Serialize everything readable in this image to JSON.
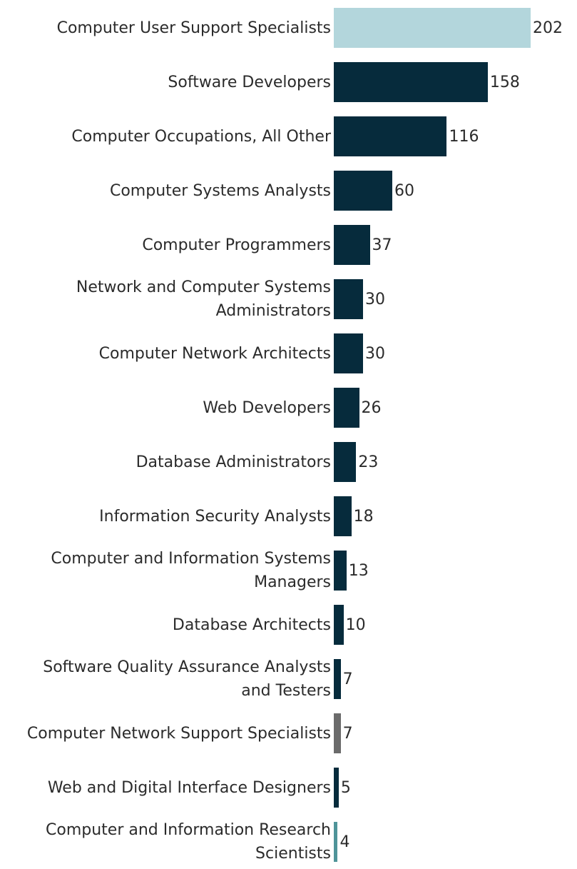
{
  "chart_data": {
    "type": "bar",
    "orientation": "horizontal",
    "title": "",
    "xlabel": "",
    "ylabel": "",
    "xlim": [
      0,
      202
    ],
    "grid": false,
    "legend": "none",
    "categories": [
      "Computer User Support Specialists",
      "Software Developers",
      "Computer Occupations, All Other",
      "Computer Systems Analysts",
      "Computer Programmers",
      "Network and Computer Systems Administrators",
      "Computer Network Architects",
      "Web Developers",
      "Database Administrators",
      "Information Security Analysts",
      "Computer and Information Systems Managers",
      "Database Architects",
      "Software Quality Assurance Analysts and Testers",
      "Computer Network Support Specialists",
      "Web and Digital Interface Designers",
      "Computer and Information Research Scientists"
    ],
    "label_lines": [
      [
        "Computer User Support Specialists"
      ],
      [
        "Software Developers"
      ],
      [
        "Computer Occupations, All Other"
      ],
      [
        "Computer Systems Analysts"
      ],
      [
        "Computer Programmers"
      ],
      [
        "Network and Computer Systems",
        "Administrators"
      ],
      [
        "Computer Network Architects"
      ],
      [
        "Web Developers"
      ],
      [
        "Database Administrators"
      ],
      [
        "Information Security Analysts"
      ],
      [
        "Computer and Information Systems",
        "Managers"
      ],
      [
        "Database Architects"
      ],
      [
        "Software Quality Assurance Analysts",
        "and Testers"
      ],
      [
        "Computer Network Support Specialists"
      ],
      [
        "Web and Digital Interface Designers"
      ],
      [
        "Computer and Information Research",
        "Scientists"
      ]
    ],
    "values": [
      202,
      158,
      116,
      60,
      37,
      30,
      30,
      26,
      23,
      18,
      13,
      10,
      7,
      7,
      5,
      4
    ],
    "colors": [
      "#b3d6dc",
      "#062b3c",
      "#062b3c",
      "#062b3c",
      "#062b3c",
      "#062b3c",
      "#062b3c",
      "#062b3c",
      "#062b3c",
      "#062b3c",
      "#062b3c",
      "#062b3c",
      "#062b3c",
      "#6b6b6b",
      "#062b3c",
      "#4f9499"
    ]
  }
}
